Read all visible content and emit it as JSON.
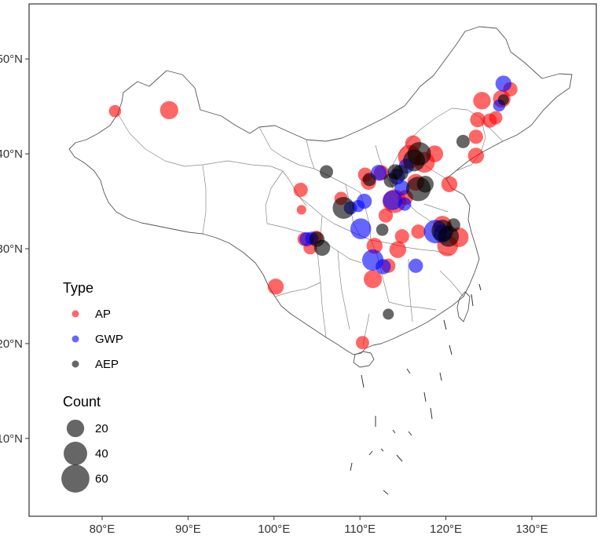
{
  "chart_data": {
    "type": "scatter",
    "title": "",
    "xlabel": "",
    "ylabel": "",
    "xlim": [
      71.5,
      137.5
    ],
    "ylim": [
      1.8,
      55.8
    ],
    "x_ticks": [
      {
        "value": 80,
        "label": "80°E"
      },
      {
        "value": 90,
        "label": "90°E"
      },
      {
        "value": 100,
        "label": "100°E"
      },
      {
        "value": 110,
        "label": "110°E"
      },
      {
        "value": 120,
        "label": "120°E"
      },
      {
        "value": 130,
        "label": "130°E"
      }
    ],
    "y_ticks": [
      {
        "value": 10,
        "label": "10°N"
      },
      {
        "value": 20,
        "label": "20°N"
      },
      {
        "value": 30,
        "label": "30°N"
      },
      {
        "value": 40,
        "label": "40°N"
      },
      {
        "value": 50,
        "label": "50°N"
      }
    ],
    "grid": false,
    "series": [
      {
        "name": "AP",
        "color": "#ff0000",
        "points": [
          {
            "lon": 81.5,
            "lat": 44.5,
            "count": 8
          },
          {
            "lon": 87.8,
            "lat": 44.6,
            "count": 22
          },
          {
            "lon": 100.2,
            "lat": 26.0,
            "count": 16
          },
          {
            "lon": 103.1,
            "lat": 36.2,
            "count": 12
          },
          {
            "lon": 103.2,
            "lat": 34.1,
            "count": 4
          },
          {
            "lon": 103.5,
            "lat": 31.0,
            "count": 10
          },
          {
            "lon": 104.2,
            "lat": 30.1,
            "count": 10
          },
          {
            "lon": 104.9,
            "lat": 31.2,
            "count": 10
          },
          {
            "lon": 107.8,
            "lat": 35.3,
            "count": 10
          },
          {
            "lon": 110.6,
            "lat": 37.8,
            "count": 12
          },
          {
            "lon": 111.0,
            "lat": 37.0,
            "count": 14
          },
          {
            "lon": 111.7,
            "lat": 30.3,
            "count": 16
          },
          {
            "lon": 111.5,
            "lat": 26.8,
            "count": 22
          },
          {
            "lon": 112.5,
            "lat": 38.0,
            "count": 14
          },
          {
            "lon": 113.0,
            "lat": 33.5,
            "count": 12
          },
          {
            "lon": 113.3,
            "lat": 28.2,
            "count": 12
          },
          {
            "lon": 114.0,
            "lat": 35.0,
            "count": 40
          },
          {
            "lon": 114.4,
            "lat": 29.9,
            "count": 18
          },
          {
            "lon": 114.9,
            "lat": 31.3,
            "count": 12
          },
          {
            "lon": 115.3,
            "lat": 35.4,
            "count": 14
          },
          {
            "lon": 115.8,
            "lat": 39.7,
            "count": 40
          },
          {
            "lon": 116.2,
            "lat": 41.1,
            "count": 16
          },
          {
            "lon": 116.5,
            "lat": 37.0,
            "count": 18
          },
          {
            "lon": 116.8,
            "lat": 31.8,
            "count": 12
          },
          {
            "lon": 117.5,
            "lat": 39.1,
            "count": 30
          },
          {
            "lon": 118.7,
            "lat": 40.0,
            "count": 18
          },
          {
            "lon": 119.6,
            "lat": 32.5,
            "count": 22
          },
          {
            "lon": 120.2,
            "lat": 30.3,
            "count": 30
          },
          {
            "lon": 120.4,
            "lat": 36.8,
            "count": 16
          },
          {
            "lon": 121.5,
            "lat": 31.2,
            "count": 26
          },
          {
            "lon": 123.5,
            "lat": 39.8,
            "count": 16
          },
          {
            "lon": 123.5,
            "lat": 41.8,
            "count": 12
          },
          {
            "lon": 123.7,
            "lat": 43.6,
            "count": 14
          },
          {
            "lon": 124.2,
            "lat": 45.6,
            "count": 20
          },
          {
            "lon": 125.1,
            "lat": 43.5,
            "count": 12
          },
          {
            "lon": 125.8,
            "lat": 43.8,
            "count": 10
          },
          {
            "lon": 126.5,
            "lat": 45.8,
            "count": 20
          },
          {
            "lon": 127.5,
            "lat": 46.8,
            "count": 12
          },
          {
            "lon": 110.3,
            "lat": 20.1,
            "count": 10
          }
        ]
      },
      {
        "name": "GWP",
        "color": "#0000ff",
        "points": [
          {
            "lon": 103.8,
            "lat": 31.0,
            "count": 12
          },
          {
            "lon": 104.4,
            "lat": 31.1,
            "count": 10
          },
          {
            "lon": 108.9,
            "lat": 34.3,
            "count": 10
          },
          {
            "lon": 109.8,
            "lat": 34.5,
            "count": 8
          },
          {
            "lon": 110.1,
            "lat": 32.1,
            "count": 30
          },
          {
            "lon": 110.5,
            "lat": 35.0,
            "count": 14
          },
          {
            "lon": 111.5,
            "lat": 28.8,
            "count": 32
          },
          {
            "lon": 112.2,
            "lat": 38.0,
            "count": 16
          },
          {
            "lon": 112.7,
            "lat": 28.1,
            "count": 14
          },
          {
            "lon": 113.8,
            "lat": 35.1,
            "count": 26
          },
          {
            "lon": 114.3,
            "lat": 37.6,
            "count": 16
          },
          {
            "lon": 114.9,
            "lat": 36.4,
            "count": 14
          },
          {
            "lon": 115.2,
            "lat": 34.7,
            "count": 10
          },
          {
            "lon": 115.4,
            "lat": 38.7,
            "count": 14
          },
          {
            "lon": 116.5,
            "lat": 28.2,
            "count": 12
          },
          {
            "lon": 118.8,
            "lat": 31.8,
            "count": 40
          },
          {
            "lon": 119.6,
            "lat": 31.6,
            "count": 22
          },
          {
            "lon": 126.2,
            "lat": 45.1,
            "count": 8
          },
          {
            "lon": 126.7,
            "lat": 47.4,
            "count": 16
          }
        ]
      },
      {
        "name": "AEP",
        "color": "#000000",
        "points": [
          {
            "lon": 105.0,
            "lat": 31.0,
            "count": 14
          },
          {
            "lon": 105.6,
            "lat": 30.1,
            "count": 16
          },
          {
            "lon": 106.1,
            "lat": 38.1,
            "count": 10
          },
          {
            "lon": 108.1,
            "lat": 34.3,
            "count": 34
          },
          {
            "lon": 111.1,
            "lat": 37.3,
            "count": 10
          },
          {
            "lon": 112.6,
            "lat": 32.0,
            "count": 8
          },
          {
            "lon": 113.3,
            "lat": 23.1,
            "count": 6
          },
          {
            "lon": 113.6,
            "lat": 37.2,
            "count": 12
          },
          {
            "lon": 114.1,
            "lat": 38.1,
            "count": 14
          },
          {
            "lon": 114.7,
            "lat": 38.0,
            "count": 16
          },
          {
            "lon": 116.3,
            "lat": 39.3,
            "count": 34
          },
          {
            "lon": 116.9,
            "lat": 40.0,
            "count": 40
          },
          {
            "lon": 116.8,
            "lat": 36.3,
            "count": 44
          },
          {
            "lon": 117.6,
            "lat": 36.8,
            "count": 18
          },
          {
            "lon": 119.6,
            "lat": 31.9,
            "count": 34
          },
          {
            "lon": 120.3,
            "lat": 31.3,
            "count": 30
          },
          {
            "lon": 120.9,
            "lat": 32.5,
            "count": 10
          },
          {
            "lon": 122.0,
            "lat": 41.3,
            "count": 10
          },
          {
            "lon": 126.7,
            "lat": 45.7,
            "count": 6
          }
        ]
      }
    ],
    "legend": {
      "placement": "bottom-left",
      "type_title": "Type",
      "type_items": [
        "AP",
        "GWP",
        "AEP"
      ],
      "size_title": "Count",
      "size_items": [
        {
          "value": 20,
          "label": "20"
        },
        {
          "value": 40,
          "label": "40"
        },
        {
          "value": 60,
          "label": "60"
        }
      ]
    }
  }
}
